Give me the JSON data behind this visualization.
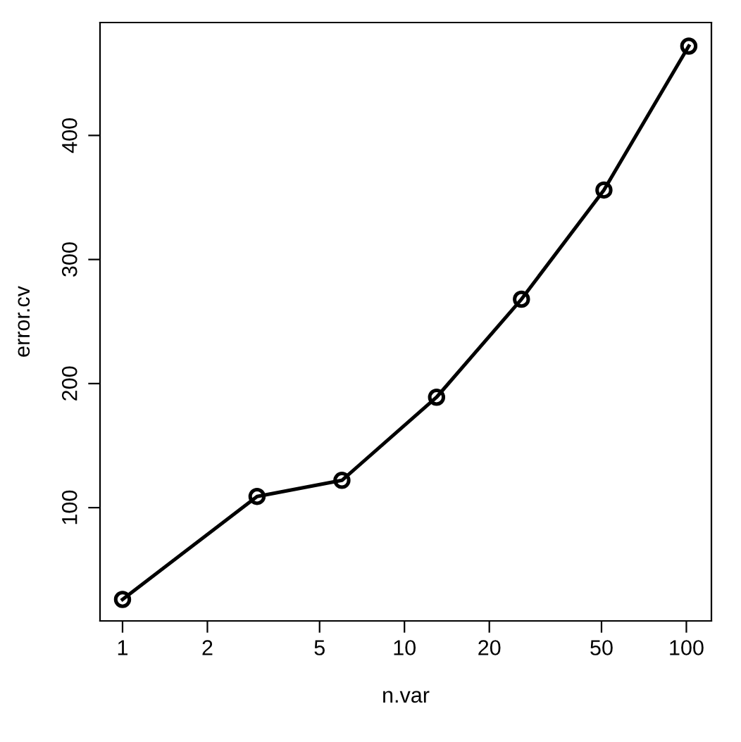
{
  "chart_data": {
    "type": "line",
    "xlabel": "n.var",
    "ylabel": "error.cv",
    "log": "x",
    "x": [
      1,
      3,
      6,
      13,
      26,
      51,
      102
    ],
    "series": [
      {
        "color": "#000000",
        "values": [
          26,
          109,
          122,
          189,
          268,
          356,
          472
        ]
      }
    ],
    "xlim": [
      0.832,
      122.7
    ],
    "xticks": [
      1,
      2,
      5,
      10,
      20,
      50,
      100
    ],
    "ylim": [
      8.7,
      491
    ],
    "yticks": [
      100,
      200,
      300,
      400
    ],
    "marker": "circle",
    "line_style": "solid",
    "grid": false,
    "legend": false
  }
}
